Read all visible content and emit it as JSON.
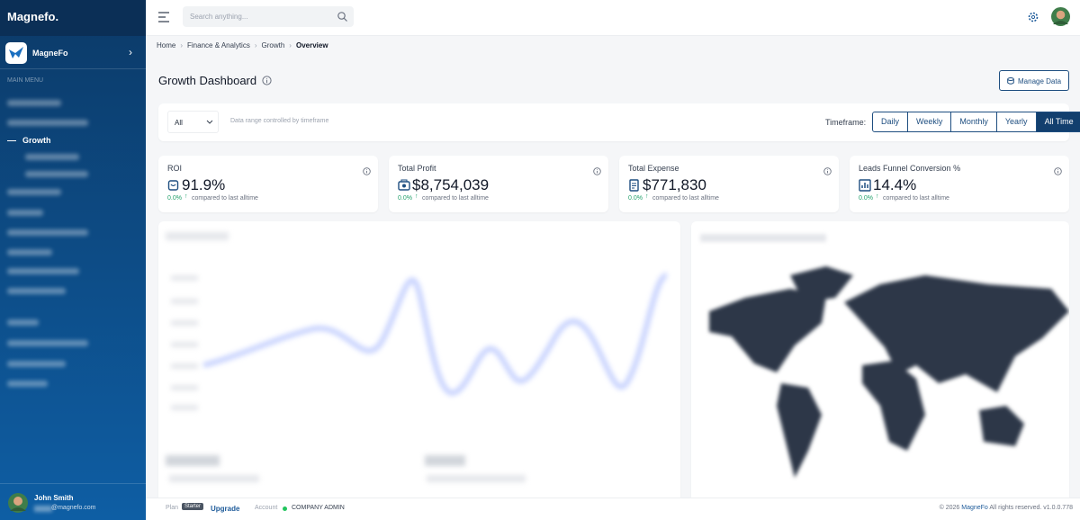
{
  "sidebar": {
    "brand": "Magnefo.",
    "org": "MagneFo",
    "section": "MAIN MENU",
    "active_item": "Growth",
    "user": {
      "name": "John Smith",
      "email": "@magnefo.com"
    }
  },
  "header": {
    "search_placeholder": "Search anything..."
  },
  "breadcrumb": [
    "Home",
    "Finance & Analytics",
    "Growth",
    "Overview"
  ],
  "page": {
    "title": "Growth Dashboard",
    "manage_button": "Manage Data"
  },
  "filters": {
    "select": "All",
    "note": "Data range controlled by timeframe",
    "timeframe_label": "Timeframe:",
    "options": [
      "Daily",
      "Weekly",
      "Monthly",
      "Yearly",
      "All Time"
    ],
    "active_index": 4
  },
  "kpis": [
    {
      "label": "ROI",
      "value": "91.9%",
      "change": "0.0%",
      "note": "compared to last alltime"
    },
    {
      "label": "Total Profit",
      "value": "$8,754,039",
      "change": "0.0%",
      "note": "compared to last alltime"
    },
    {
      "label": "Total Expense",
      "value": "$771,830",
      "change": "0.0%",
      "note": "compared to last alltime"
    },
    {
      "label": "Leads Funnel Conversion %",
      "value": "14.4%",
      "change": "0.0%",
      "note": "compared to last alltime"
    }
  ],
  "footer": {
    "plan_label": "Plan",
    "plan": "Starter",
    "upgrade": "Upgrade",
    "account_label": "Account",
    "role": "COMPANY ADMIN",
    "copyright": "© 2026",
    "brand": "MagneFo",
    "rights": "All rights reserved.",
    "version": "v1.0.0.778"
  }
}
